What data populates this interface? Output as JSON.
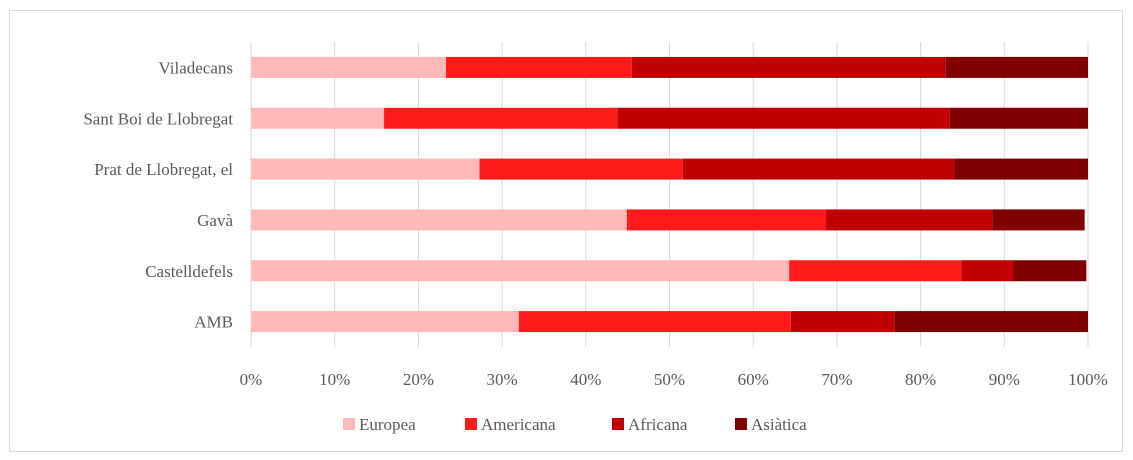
{
  "chart_data": {
    "type": "bar",
    "orientation": "horizontal",
    "stacked": "percent",
    "categories": [
      "Viladecans",
      "Sant Boi de Llobregat",
      "Prat de Llobregat, el",
      "Gavà",
      "Castelldefels",
      "AMB"
    ],
    "series": [
      {
        "name": "Europea",
        "color": "#ffb9b9",
        "values": [
          23.3,
          15.9,
          27.3,
          44.9,
          64.3,
          32.0
        ]
      },
      {
        "name": "Americana",
        "color": "#ff1a1a",
        "values": [
          22.2,
          27.9,
          24.3,
          23.8,
          20.6,
          32.5
        ]
      },
      {
        "name": "Africana",
        "color": "#c00000",
        "values": [
          37.5,
          39.7,
          32.4,
          19.9,
          6.2,
          12.4
        ]
      },
      {
        "name": "Asiàtica",
        "color": "#800000",
        "values": [
          17.0,
          16.5,
          16.0,
          11.0,
          8.7,
          23.1
        ]
      }
    ],
    "xlim": [
      0,
      100
    ],
    "x_ticks": [
      "0%",
      "10%",
      "20%",
      "30%",
      "40%",
      "50%",
      "60%",
      "70%",
      "80%",
      "90%",
      "100%"
    ],
    "grid": "vertical",
    "legend_position": "bottom",
    "title": "",
    "xlabel": "",
    "ylabel": ""
  }
}
